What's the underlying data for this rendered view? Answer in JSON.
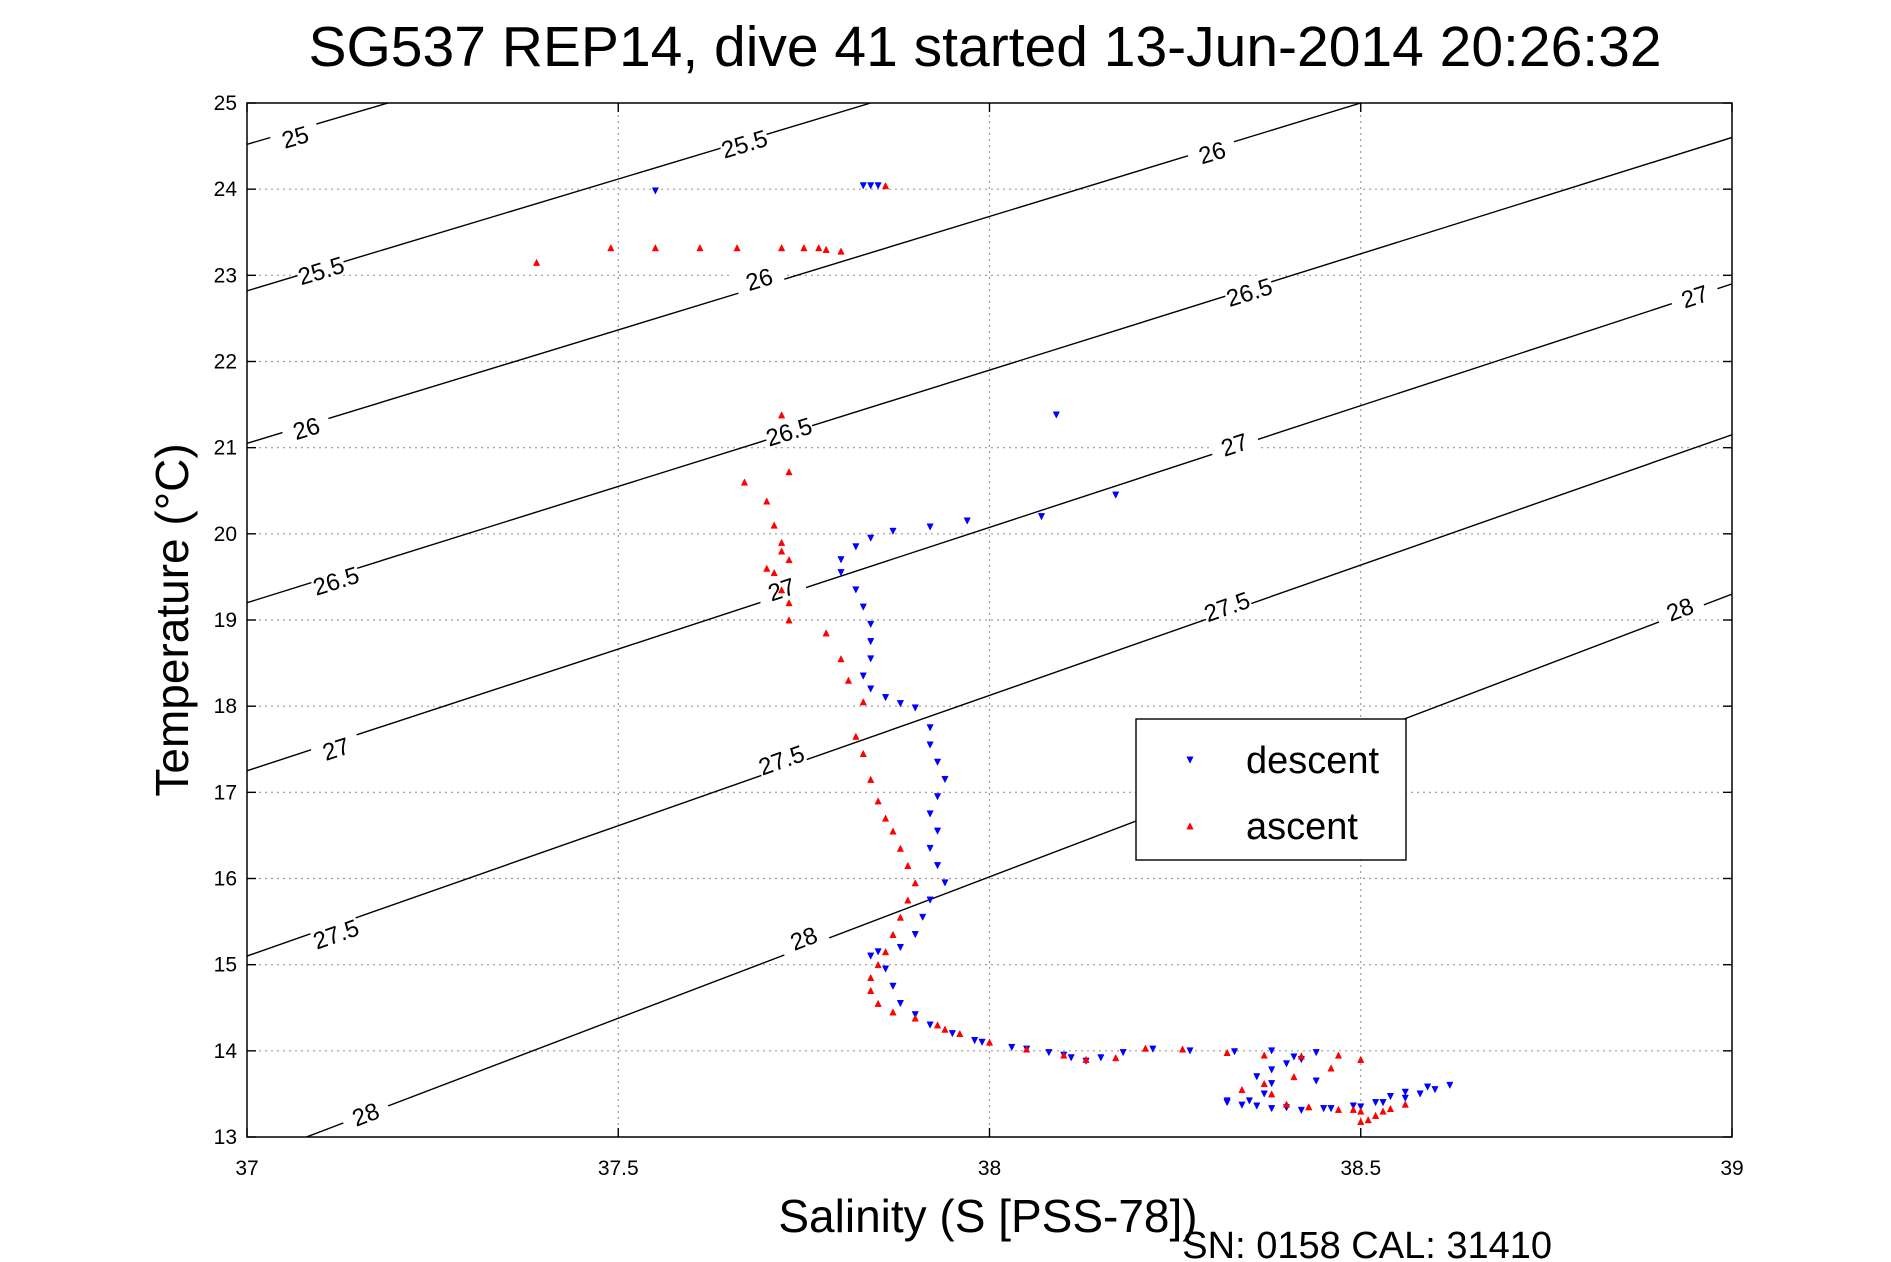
{
  "chart_data": {
    "type": "scatter",
    "title": "SG537 REP14, dive 41 started 13-Jun-2014 20:26:32",
    "xlabel": "Salinity (S [PSS-78])",
    "ylabel": "Temperature (°C)",
    "xlim": [
      37,
      39
    ],
    "ylim": [
      13,
      25
    ],
    "xticks": [
      "37",
      "37.5",
      "38",
      "38.5",
      "39"
    ],
    "yticks": [
      "13",
      "14",
      "15",
      "16",
      "17",
      "18",
      "19",
      "20",
      "21",
      "22",
      "23",
      "24",
      "25"
    ],
    "grid": true,
    "legend_position": "center-right",
    "footer": "SN: 0158  CAL: 31410",
    "density_contours": [
      {
        "label": "25",
        "points": [
          [
            37,
            24.52
          ],
          [
            37.19,
            25.0
          ]
        ]
      },
      {
        "label": "25.5",
        "points": [
          [
            37,
            22.82
          ],
          [
            37.84,
            25.0
          ]
        ]
      },
      {
        "label": "26",
        "points": [
          [
            37,
            21.05
          ],
          [
            38.5,
            25.0
          ]
        ]
      },
      {
        "label": "26.5",
        "points": [
          [
            37,
            19.2
          ],
          [
            39,
            24.6
          ]
        ]
      },
      {
        "label": "27",
        "points": [
          [
            37,
            17.25
          ],
          [
            39,
            22.9
          ]
        ]
      },
      {
        "label": "27.5",
        "points": [
          [
            37,
            15.1
          ],
          [
            39,
            21.15
          ]
        ]
      },
      {
        "label": "28",
        "points": [
          [
            37.08,
            13.0
          ],
          [
            39,
            19.3
          ]
        ]
      }
    ],
    "contour_labels": [
      {
        "text": "25",
        "x": 37.065,
        "y": 24.6
      },
      {
        "text": "25.5",
        "x": 37.67,
        "y": 24.52
      },
      {
        "text": "25.5",
        "x": 37.1,
        "y": 23.05
      },
      {
        "text": "26",
        "x": 38.3,
        "y": 24.42
      },
      {
        "text": "26",
        "x": 37.69,
        "y": 22.95
      },
      {
        "text": "26",
        "x": 37.08,
        "y": 21.22
      },
      {
        "text": "26.5",
        "x": 38.35,
        "y": 22.8
      },
      {
        "text": "26.5",
        "x": 37.73,
        "y": 21.18
      },
      {
        "text": "26.5",
        "x": 37.12,
        "y": 19.45
      },
      {
        "text": "27",
        "x": 38.95,
        "y": 22.75
      },
      {
        "text": "27",
        "x": 38.33,
        "y": 21.03
      },
      {
        "text": "27",
        "x": 37.72,
        "y": 19.35
      },
      {
        "text": "27",
        "x": 37.12,
        "y": 17.5
      },
      {
        "text": "27.5",
        "x": 38.32,
        "y": 19.15
      },
      {
        "text": "27.5",
        "x": 37.72,
        "y": 17.37
      },
      {
        "text": "27.5",
        "x": 37.12,
        "y": 15.35
      },
      {
        "text": "28",
        "x": 38.93,
        "y": 19.12
      },
      {
        "text": "28",
        "x": 37.75,
        "y": 15.3
      },
      {
        "text": "28",
        "x": 37.16,
        "y": 13.26
      }
    ],
    "series": [
      {
        "name": "descent",
        "color": "#0000ff",
        "marker": "triangle-down",
        "points": [
          [
            37.55,
            23.98
          ],
          [
            37.83,
            24.04
          ],
          [
            37.84,
            24.04
          ],
          [
            37.85,
            24.04
          ],
          [
            38.09,
            21.38
          ],
          [
            38.17,
            20.45
          ],
          [
            38.07,
            20.2
          ],
          [
            37.97,
            20.15
          ],
          [
            37.92,
            20.08
          ],
          [
            37.87,
            20.03
          ],
          [
            37.84,
            19.95
          ],
          [
            37.82,
            19.85
          ],
          [
            37.8,
            19.7
          ],
          [
            37.8,
            19.55
          ],
          [
            37.82,
            19.35
          ],
          [
            37.83,
            19.15
          ],
          [
            37.84,
            18.95
          ],
          [
            37.84,
            18.75
          ],
          [
            37.84,
            18.55
          ],
          [
            37.83,
            18.35
          ],
          [
            37.84,
            18.2
          ],
          [
            37.86,
            18.1
          ],
          [
            37.88,
            18.03
          ],
          [
            37.9,
            17.98
          ],
          [
            37.92,
            17.75
          ],
          [
            37.92,
            17.55
          ],
          [
            37.93,
            17.35
          ],
          [
            37.94,
            17.15
          ],
          [
            37.93,
            16.95
          ],
          [
            37.92,
            16.75
          ],
          [
            37.93,
            16.55
          ],
          [
            37.92,
            16.35
          ],
          [
            37.93,
            16.15
          ],
          [
            37.94,
            15.95
          ],
          [
            37.92,
            15.75
          ],
          [
            37.91,
            15.55
          ],
          [
            37.9,
            15.35
          ],
          [
            37.88,
            15.2
          ],
          [
            37.85,
            15.15
          ],
          [
            37.84,
            15.1
          ],
          [
            37.86,
            14.95
          ],
          [
            37.87,
            14.75
          ],
          [
            37.88,
            14.55
          ],
          [
            37.9,
            14.42
          ],
          [
            37.92,
            14.3
          ],
          [
            37.95,
            14.2
          ],
          [
            37.99,
            14.1
          ],
          [
            38.03,
            14.04
          ],
          [
            38.08,
            13.98
          ],
          [
            38.11,
            13.92
          ],
          [
            38.13,
            13.88
          ],
          [
            38.15,
            13.92
          ],
          [
            38.18,
            13.98
          ],
          [
            38.22,
            14.02
          ],
          [
            38.27,
            14.0
          ],
          [
            38.33,
            13.99
          ],
          [
            38.38,
            14.0
          ],
          [
            38.41,
            13.93
          ],
          [
            38.4,
            13.85
          ],
          [
            38.38,
            13.78
          ],
          [
            38.36,
            13.7
          ],
          [
            38.38,
            13.62
          ],
          [
            38.37,
            13.5
          ],
          [
            38.35,
            13.42
          ],
          [
            38.32,
            13.4
          ],
          [
            38.36,
            13.36
          ],
          [
            38.4,
            13.34
          ],
          [
            38.45,
            13.33
          ],
          [
            38.5,
            13.35
          ],
          [
            38.53,
            13.4
          ],
          [
            38.56,
            13.45
          ],
          [
            38.58,
            13.5
          ],
          [
            38.6,
            13.55
          ],
          [
            38.62,
            13.6
          ],
          [
            38.59,
            13.58
          ],
          [
            38.56,
            13.52
          ],
          [
            38.54,
            13.47
          ],
          [
            38.52,
            13.4
          ],
          [
            38.49,
            13.36
          ],
          [
            38.46,
            13.33
          ],
          [
            38.42,
            13.31
          ],
          [
            38.38,
            13.33
          ],
          [
            38.34,
            13.37
          ],
          [
            38.32,
            13.42
          ],
          [
            38.05,
            14.02
          ],
          [
            38.1,
            13.95
          ],
          [
            37.98,
            14.12
          ],
          [
            38.44,
            13.98
          ],
          [
            38.42,
            13.9
          ],
          [
            38.44,
            13.65
          ]
        ]
      },
      {
        "name": "ascent",
        "color": "#ff0000",
        "marker": "triangle-up",
        "points": [
          [
            37.39,
            23.15
          ],
          [
            37.49,
            23.32
          ],
          [
            37.55,
            23.32
          ],
          [
            37.61,
            23.32
          ],
          [
            37.66,
            23.32
          ],
          [
            37.72,
            23.32
          ],
          [
            37.75,
            23.32
          ],
          [
            37.77,
            23.32
          ],
          [
            37.78,
            23.3
          ],
          [
            37.8,
            23.28
          ],
          [
            37.86,
            24.04
          ],
          [
            37.72,
            21.38
          ],
          [
            37.73,
            20.72
          ],
          [
            37.67,
            20.6
          ],
          [
            37.7,
            20.38
          ],
          [
            37.71,
            20.1
          ],
          [
            37.72,
            19.9
          ],
          [
            37.73,
            19.7
          ],
          [
            37.71,
            19.55
          ],
          [
            37.72,
            19.35
          ],
          [
            37.73,
            19.2
          ],
          [
            37.73,
            19.0
          ],
          [
            37.7,
            19.6
          ],
          [
            37.72,
            19.8
          ],
          [
            37.78,
            18.85
          ],
          [
            37.8,
            18.55
          ],
          [
            37.81,
            18.3
          ],
          [
            37.83,
            18.05
          ],
          [
            37.82,
            17.65
          ],
          [
            37.83,
            17.45
          ],
          [
            37.84,
            17.15
          ],
          [
            37.85,
            16.9
          ],
          [
            37.86,
            16.7
          ],
          [
            37.87,
            16.55
          ],
          [
            37.88,
            16.35
          ],
          [
            37.89,
            16.15
          ],
          [
            37.9,
            15.95
          ],
          [
            37.89,
            15.75
          ],
          [
            37.88,
            15.55
          ],
          [
            37.87,
            15.35
          ],
          [
            37.86,
            15.15
          ],
          [
            37.85,
            15.0
          ],
          [
            37.84,
            14.85
          ],
          [
            37.84,
            14.7
          ],
          [
            37.85,
            14.55
          ],
          [
            37.87,
            14.45
          ],
          [
            37.9,
            14.38
          ],
          [
            37.93,
            14.3
          ],
          [
            37.96,
            14.2
          ],
          [
            38.0,
            14.1
          ],
          [
            38.05,
            14.02
          ],
          [
            38.1,
            13.95
          ],
          [
            38.13,
            13.9
          ],
          [
            38.17,
            13.92
          ],
          [
            38.21,
            14.03
          ],
          [
            38.26,
            14.02
          ],
          [
            38.32,
            13.98
          ],
          [
            38.37,
            13.95
          ],
          [
            38.42,
            13.94
          ],
          [
            38.47,
            13.95
          ],
          [
            38.5,
            13.9
          ],
          [
            38.46,
            13.8
          ],
          [
            38.41,
            13.7
          ],
          [
            38.37,
            13.62
          ],
          [
            38.34,
            13.55
          ],
          [
            38.38,
            13.5
          ],
          [
            38.43,
            13.35
          ],
          [
            38.47,
            13.32
          ],
          [
            38.5,
            13.3
          ],
          [
            38.53,
            13.3
          ],
          [
            38.56,
            13.38
          ],
          [
            38.54,
            13.33
          ],
          [
            38.52,
            13.25
          ],
          [
            38.51,
            13.2
          ],
          [
            38.5,
            13.18
          ],
          [
            38.49,
            13.32
          ],
          [
            38.4,
            13.38
          ],
          [
            37.94,
            14.25
          ]
        ]
      }
    ]
  }
}
